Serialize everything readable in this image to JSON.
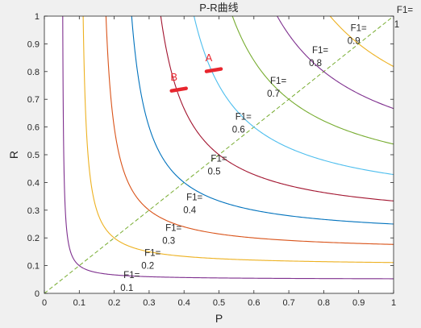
{
  "chart_data": {
    "type": "line",
    "title": "P-R曲线",
    "xlabel": "P",
    "ylabel": "R",
    "xlim": [
      0,
      1
    ],
    "ylim": [
      0,
      1
    ],
    "xticks": [
      "0",
      "0.1",
      "0.2",
      "0.3",
      "0.4",
      "0.5",
      "0.6",
      "0.7",
      "0.8",
      "0.9",
      "1"
    ],
    "yticks": [
      "0",
      "0.1",
      "0.2",
      "0.3",
      "0.4",
      "0.5",
      "0.6",
      "0.7",
      "0.8",
      "0.9",
      "1"
    ],
    "grid": false,
    "series": [
      {
        "f1": 0.1,
        "label_prefix": "F1=",
        "label_value": "0.1",
        "color": "#7e2f8e",
        "label_at": [
          0.25,
          0.05
        ]
      },
      {
        "f1": 0.2,
        "label_prefix": "F1=",
        "label_value": "0.2",
        "color": "#edb120",
        "label_at": [
          0.31,
          0.13
        ]
      },
      {
        "f1": 0.3,
        "label_prefix": "F1=",
        "label_value": "0.3",
        "color": "#d95319",
        "label_at": [
          0.37,
          0.22
        ]
      },
      {
        "f1": 0.4,
        "label_prefix": "F1=",
        "label_value": "0.4",
        "color": "#0072bd",
        "label_at": [
          0.43,
          0.33
        ]
      },
      {
        "f1": 0.5,
        "label_prefix": "F1=",
        "label_value": "0.5",
        "color": "#a2142f",
        "label_at": [
          0.5,
          0.47
        ]
      },
      {
        "f1": 0.6,
        "label_prefix": "F1=",
        "label_value": "0.6",
        "color": "#4dbeee",
        "label_at": [
          0.57,
          0.62
        ]
      },
      {
        "f1": 0.7,
        "label_prefix": "F1=",
        "label_value": "0.7",
        "color": "#77ac30",
        "label_at": [
          0.67,
          0.75
        ]
      },
      {
        "f1": 0.8,
        "label_prefix": "F1=",
        "label_value": "0.8",
        "color": "#7e2f8e",
        "label_at": [
          0.79,
          0.86
        ]
      },
      {
        "f1": 0.9,
        "label_prefix": "F1=",
        "label_value": "0.9",
        "color": "#edb120",
        "label_at": [
          0.9,
          0.94
        ]
      },
      {
        "f1": 1.0,
        "label_prefix": "F1=",
        "label_value": "1",
        "color": "#d95319",
        "label_at": [
          1.0,
          1.0
        ]
      }
    ],
    "diagonal": {
      "from": [
        0,
        0
      ],
      "to": [
        1,
        1
      ],
      "style": "dashed",
      "color": "#77ac30"
    },
    "annotations": [
      {
        "label": "A",
        "x": 0.485,
        "y": 0.805,
        "color": "#e8262e"
      },
      {
        "label": "B",
        "x": 0.385,
        "y": 0.735,
        "color": "#e8262e"
      }
    ]
  }
}
